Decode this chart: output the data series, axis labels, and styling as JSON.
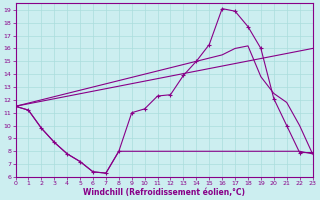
{
  "xlabel": "Windchill (Refroidissement éolien,°C)",
  "bg_color": "#cceef0",
  "line_color": "#880088",
  "grid_color": "#aadddd",
  "xlim": [
    0,
    23
  ],
  "ylim": [
    6,
    19.5
  ],
  "xticks": [
    0,
    1,
    2,
    3,
    4,
    5,
    6,
    7,
    8,
    9,
    10,
    11,
    12,
    13,
    14,
    15,
    16,
    17,
    18,
    19,
    20,
    21,
    22,
    23
  ],
  "yticks": [
    6,
    7,
    8,
    9,
    10,
    11,
    12,
    13,
    14,
    15,
    16,
    17,
    18,
    19
  ],
  "line1_x": [
    0,
    1,
    2,
    3,
    4,
    5,
    6,
    7,
    8,
    9,
    10,
    11,
    12,
    13,
    14,
    15,
    16,
    17,
    18,
    19,
    20,
    21,
    22,
    23
  ],
  "line1_y": [
    11.5,
    11.2,
    9.8,
    8.7,
    7.8,
    7.2,
    6.4,
    6.3,
    8.0,
    11.0,
    11.3,
    12.3,
    12.4,
    13.9,
    15.0,
    16.3,
    19.1,
    18.9,
    17.7,
    16.0,
    12.1,
    10.0,
    7.9,
    7.9
  ],
  "line2_x": [
    0,
    16,
    17,
    18,
    19,
    20,
    21,
    22,
    23
  ],
  "line2_y": [
    11.5,
    15.5,
    16.0,
    16.2,
    13.8,
    12.5,
    11.8,
    10.0,
    7.8
  ],
  "line3_x": [
    0,
    23
  ],
  "line3_y": [
    11.5,
    16.0
  ],
  "line4_x": [
    0,
    1,
    2,
    3,
    4,
    5,
    6,
    7,
    8,
    9,
    10,
    11,
    12,
    13,
    14,
    15,
    16,
    17,
    18,
    19,
    20,
    21,
    22,
    23
  ],
  "line4_y": [
    11.5,
    11.2,
    9.8,
    8.7,
    7.8,
    7.2,
    6.4,
    6.3,
    8.0,
    8.0,
    8.0,
    8.0,
    8.0,
    8.0,
    8.0,
    8.0,
    8.0,
    8.0,
    8.0,
    8.0,
    8.0,
    8.0,
    8.0,
    7.8
  ]
}
